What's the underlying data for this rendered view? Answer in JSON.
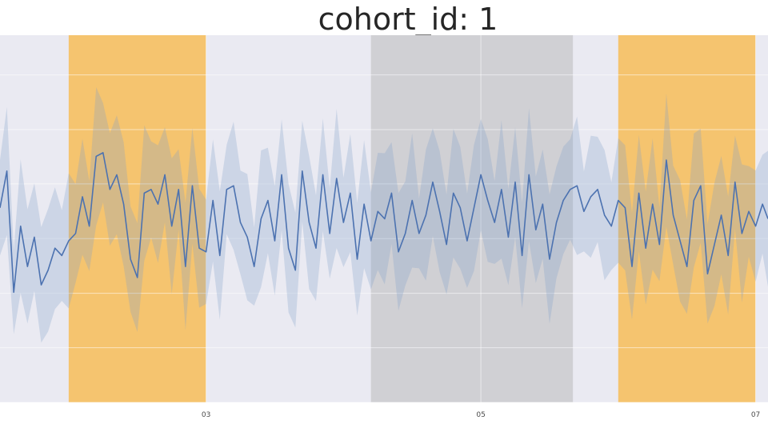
{
  "chart_data": {
    "type": "line",
    "title": "cohort_id: 1",
    "xlabel": "",
    "ylabel": "",
    "grid": true,
    "legend": "none",
    "x_ticks": [
      {
        "label": "03",
        "x": 3
      },
      {
        "label": "05",
        "x": 5
      },
      {
        "label": "07",
        "x": 7
      }
    ],
    "xlim": [
      1.5,
      7.09
    ],
    "ylim": [
      0,
      1
    ],
    "y_ticks": [
      0.0,
      0.149,
      0.297,
      0.446,
      0.595,
      0.743,
      0.892
    ],
    "highlight_spans": [
      {
        "x_start": 2.0,
        "x_end": 3.0,
        "color": "#f5c46f"
      },
      {
        "x_start": 4.2,
        "x_end": 5.67,
        "color": "#d0d0d4"
      },
      {
        "x_start": 6.0,
        "x_end": 7.0,
        "color": "#f5c46f"
      }
    ],
    "series": [
      {
        "color": "#4c72b0",
        "band_color": "#7f9dc9",
        "x": [
          1.5,
          1.55,
          1.6,
          1.65,
          1.7,
          1.75,
          1.8,
          1.85,
          1.9,
          1.95,
          2.0,
          2.05,
          2.1,
          2.15,
          2.2,
          2.25,
          2.3,
          2.35,
          2.4,
          2.45,
          2.5,
          2.55,
          2.6,
          2.65,
          2.7,
          2.75,
          2.8,
          2.85,
          2.9,
          2.95,
          3.0,
          3.05,
          3.1,
          3.15,
          3.2,
          3.25,
          3.3,
          3.35,
          3.4,
          3.45,
          3.5,
          3.55,
          3.6,
          3.65,
          3.7,
          3.75,
          3.8,
          3.85,
          3.9,
          3.95,
          4.0,
          4.05,
          4.1,
          4.15,
          4.2,
          4.25,
          4.3,
          4.35,
          4.4,
          4.45,
          4.5,
          4.55,
          4.6,
          4.65,
          4.7,
          4.75,
          4.8,
          4.85,
          4.9,
          4.95,
          5.0,
          5.05,
          5.1,
          5.15,
          5.2,
          5.25,
          5.3,
          5.35,
          5.4,
          5.45,
          5.5,
          5.55,
          5.6,
          5.65,
          5.7,
          5.75,
          5.8,
          5.85,
          5.9,
          5.95,
          6.0,
          6.05,
          6.1,
          6.15,
          6.2,
          6.25,
          6.3,
          6.35,
          6.4,
          6.45,
          6.5,
          6.55,
          6.6,
          6.65,
          6.7,
          6.75,
          6.8,
          6.85,
          6.9,
          6.95,
          7.0,
          7.05,
          7.09
        ],
        "mean": [
          0.53,
          0.63,
          0.3,
          0.48,
          0.37,
          0.45,
          0.32,
          0.36,
          0.42,
          0.4,
          0.44,
          0.46,
          0.56,
          0.48,
          0.67,
          0.68,
          0.58,
          0.62,
          0.54,
          0.39,
          0.34,
          0.57,
          0.58,
          0.54,
          0.62,
          0.48,
          0.58,
          0.37,
          0.59,
          0.42,
          0.41,
          0.55,
          0.4,
          0.58,
          0.59,
          0.49,
          0.45,
          0.37,
          0.5,
          0.55,
          0.44,
          0.62,
          0.42,
          0.36,
          0.63,
          0.49,
          0.42,
          0.62,
          0.46,
          0.61,
          0.49,
          0.57,
          0.39,
          0.54,
          0.44,
          0.52,
          0.5,
          0.57,
          0.41,
          0.46,
          0.55,
          0.46,
          0.51,
          0.6,
          0.52,
          0.43,
          0.57,
          0.53,
          0.44,
          0.53,
          0.62,
          0.55,
          0.49,
          0.58,
          0.45,
          0.6,
          0.4,
          0.62,
          0.47,
          0.54,
          0.39,
          0.49,
          0.55,
          0.58,
          0.59,
          0.52,
          0.56,
          0.58,
          0.51,
          0.48,
          0.55,
          0.53,
          0.37,
          0.57,
          0.42,
          0.54,
          0.43,
          0.66,
          0.51,
          0.44,
          0.37,
          0.55,
          0.59,
          0.35,
          0.43,
          0.51,
          0.4,
          0.6,
          0.46,
          0.52,
          0.48,
          0.54,
          0.5
        ]
      }
    ]
  }
}
